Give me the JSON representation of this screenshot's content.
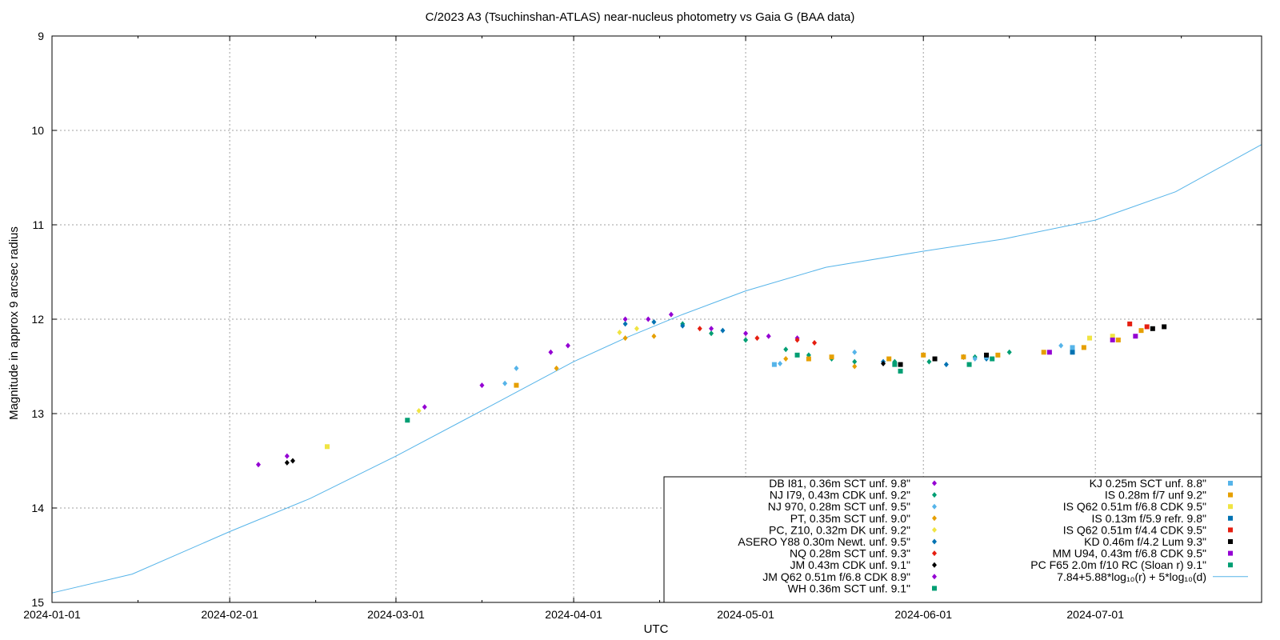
{
  "chart_data": {
    "type": "scatter",
    "title": "C/2023 A3 (Tsuchinshan-ATLAS) near-nucleus photometry vs Gaia G (BAA data)",
    "xlabel": "UTC",
    "ylabel": "Magnitude in approx 9 arcsec radius",
    "x_range": [
      "2024-01-01",
      "2024-07-30"
    ],
    "y_range": [
      9,
      15
    ],
    "y_inverted": true,
    "grid": true,
    "legend_position": "bottom-right",
    "x_ticks": [
      "2024-01-01",
      "2024-02-01",
      "2024-03-01",
      "2024-04-01",
      "2024-05-01",
      "2024-06-01",
      "2024-07-01"
    ],
    "y_ticks": [
      9,
      10,
      11,
      12,
      13,
      14,
      15
    ],
    "series": [
      {
        "name": "DB I81, 0.36m SCT unf. 9.8\"",
        "color": "#9400d3",
        "marker": "diamond",
        "points": [
          [
            "2024-04-10",
            12.0
          ],
          [
            "2024-04-18",
            11.95
          ],
          [
            "2024-04-25",
            12.1
          ],
          [
            "2024-05-01",
            12.15
          ],
          [
            "2024-05-05",
            12.18
          ],
          [
            "2024-05-10",
            12.2
          ]
        ]
      },
      {
        "name": "NJ I79, 0.43m CDK unf. 9.2\"",
        "color": "#009e73",
        "marker": "diamond",
        "points": [
          [
            "2024-04-20",
            12.05
          ],
          [
            "2024-04-25",
            12.15
          ],
          [
            "2024-05-01",
            12.22
          ],
          [
            "2024-05-08",
            12.32
          ],
          [
            "2024-05-12",
            12.38
          ],
          [
            "2024-05-16",
            12.42
          ],
          [
            "2024-05-20",
            12.45
          ],
          [
            "2024-05-27",
            12.45
          ],
          [
            "2024-06-02",
            12.45
          ],
          [
            "2024-06-10",
            12.4
          ],
          [
            "2024-06-16",
            12.35
          ]
        ]
      },
      {
        "name": "NJ 970, 0.28m SCT unf. 9.5\"",
        "color": "#56b4e9",
        "marker": "diamond",
        "points": [
          [
            "2024-03-20",
            12.68
          ],
          [
            "2024-03-22",
            12.52
          ],
          [
            "2024-05-07",
            12.47
          ],
          [
            "2024-05-20",
            12.35
          ],
          [
            "2024-06-10",
            12.42
          ],
          [
            "2024-06-25",
            12.28
          ]
        ]
      },
      {
        "name": "PT, 0.35m SCT unf. 9.0\"",
        "color": "#e69f00",
        "marker": "diamond",
        "points": [
          [
            "2024-03-29",
            12.52
          ],
          [
            "2024-04-10",
            12.2
          ],
          [
            "2024-04-15",
            12.18
          ],
          [
            "2024-05-08",
            12.42
          ],
          [
            "2024-05-20",
            12.5
          ]
        ]
      },
      {
        "name": "PC, Z10, 0.32m DK unf. 9.2\"",
        "color": "#f0e442",
        "marker": "diamond",
        "points": [
          [
            "2024-03-05",
            12.97
          ],
          [
            "2024-04-09",
            12.14
          ],
          [
            "2024-04-12",
            12.1
          ]
        ]
      },
      {
        "name": "ASERO Y88 0.30m Newt. unf. 9.5\"",
        "color": "#0072b2",
        "marker": "diamond",
        "points": [
          [
            "2024-04-10",
            12.05
          ],
          [
            "2024-04-15",
            12.03
          ],
          [
            "2024-04-20",
            12.07
          ],
          [
            "2024-04-27",
            12.12
          ],
          [
            "2024-05-25",
            12.45
          ],
          [
            "2024-06-05",
            12.48
          ],
          [
            "2024-06-12",
            12.42
          ]
        ]
      },
      {
        "name": "NQ 0.28m SCT unf. 9.3\"",
        "color": "#e51e10",
        "marker": "diamond",
        "points": [
          [
            "2024-04-23",
            12.1
          ],
          [
            "2024-05-03",
            12.2
          ],
          [
            "2024-05-10",
            12.22
          ],
          [
            "2024-05-13",
            12.25
          ]
        ]
      },
      {
        "name": "JM 0.43m CDK unf. 9.1\"",
        "color": "#000000",
        "marker": "diamond",
        "points": [
          [
            "2024-02-11",
            13.52
          ],
          [
            "2024-02-12",
            13.5
          ],
          [
            "2024-05-25",
            12.47
          ],
          [
            "2024-06-08",
            12.4
          ]
        ]
      },
      {
        "name": "JM Q62 0.51m f/6.8 CDK 8.9\"",
        "color": "#9400d3",
        "marker": "diamond",
        "points": [
          [
            "2024-02-06",
            13.54
          ],
          [
            "2024-02-11",
            13.45
          ],
          [
            "2024-03-06",
            12.93
          ],
          [
            "2024-03-16",
            12.7
          ],
          [
            "2024-03-28",
            12.35
          ],
          [
            "2024-03-31",
            12.28
          ],
          [
            "2024-04-14",
            12.0
          ]
        ]
      },
      {
        "name": "WH 0.36m SCT  unf. 9.1\"",
        "color": "#009e73",
        "marker": "square",
        "points": [
          [
            "2024-03-03",
            13.07
          ],
          [
            "2024-05-28",
            12.55
          ],
          [
            "2024-06-09",
            12.48
          ]
        ]
      },
      {
        "name": "KJ 0.25m SCT  unf. 8.8\"",
        "color": "#56b4e9",
        "marker": "square",
        "points": [
          [
            "2024-05-06",
            12.48
          ],
          [
            "2024-06-12",
            12.4
          ],
          [
            "2024-06-27",
            12.3
          ]
        ]
      },
      {
        "name": "IS 0.28m f/7 unf 9.2\"",
        "color": "#e69f00",
        "marker": "square",
        "points": [
          [
            "2024-03-22",
            12.7
          ],
          [
            "2024-05-12",
            12.42
          ],
          [
            "2024-05-16",
            12.4
          ],
          [
            "2024-05-26",
            12.42
          ],
          [
            "2024-06-01",
            12.38
          ],
          [
            "2024-06-08",
            12.4
          ],
          [
            "2024-06-14",
            12.38
          ],
          [
            "2024-06-22",
            12.35
          ],
          [
            "2024-06-29",
            12.3
          ],
          [
            "2024-07-05",
            12.22
          ],
          [
            "2024-07-09",
            12.12
          ]
        ]
      },
      {
        "name": "IS Q62 0.51m f/6.8 CDK 9.5\"",
        "color": "#f0e442",
        "marker": "square",
        "points": [
          [
            "2024-02-18",
            13.35
          ],
          [
            "2024-06-30",
            12.2
          ],
          [
            "2024-07-04",
            12.18
          ]
        ]
      },
      {
        "name": "IS 0.13m f/5.9 refr. 9.8\"",
        "color": "#0072b2",
        "marker": "square",
        "points": [
          [
            "2024-06-27",
            12.35
          ]
        ]
      },
      {
        "name": "IS Q62 0.51m f/4.4 CDK 9.5\"",
        "color": "#e51e10",
        "marker": "square",
        "points": [
          [
            "2024-07-07",
            12.05
          ],
          [
            "2024-07-10",
            12.08
          ]
        ]
      },
      {
        "name": "KD 0.46m f/4.2 Lum 9.3\"",
        "color": "#000000",
        "marker": "square",
        "points": [
          [
            "2024-05-28",
            12.48
          ],
          [
            "2024-06-03",
            12.42
          ],
          [
            "2024-06-12",
            12.38
          ],
          [
            "2024-07-11",
            12.1
          ],
          [
            "2024-07-13",
            12.08
          ]
        ]
      },
      {
        "name": "MM U94, 0.43m f/6.8 CDK 9.5\"",
        "color": "#9400d3",
        "marker": "square",
        "points": [
          [
            "2024-06-23",
            12.35
          ],
          [
            "2024-07-04",
            12.22
          ],
          [
            "2024-07-08",
            12.18
          ]
        ]
      },
      {
        "name": "PC F65 2.0m f/10 RC (Sloan r) 9.1\"",
        "color": "#009e73",
        "marker": "square",
        "points": [
          [
            "2024-05-10",
            12.38
          ],
          [
            "2024-05-27",
            12.48
          ],
          [
            "2024-06-13",
            12.42
          ]
        ]
      }
    ],
    "model": {
      "name": "7.84+5.88*log₁₀(r) + 5*log₁₀(d)",
      "color": "#56b4e9",
      "points": [
        [
          "2024-01-01",
          14.9
        ],
        [
          "2024-01-15",
          14.7
        ],
        [
          "2024-02-01",
          14.25
        ],
        [
          "2024-02-15",
          13.9
        ],
        [
          "2024-03-01",
          13.45
        ],
        [
          "2024-03-15",
          13.0
        ],
        [
          "2024-04-01",
          12.45
        ],
        [
          "2024-04-10",
          12.2
        ],
        [
          "2024-04-20",
          11.95
        ],
        [
          "2024-05-01",
          11.7
        ],
        [
          "2024-05-15",
          11.45
        ],
        [
          "2024-06-01",
          11.28
        ],
        [
          "2024-06-15",
          11.15
        ],
        [
          "2024-07-01",
          10.95
        ],
        [
          "2024-07-15",
          10.65
        ],
        [
          "2024-07-30",
          10.15
        ]
      ]
    }
  }
}
